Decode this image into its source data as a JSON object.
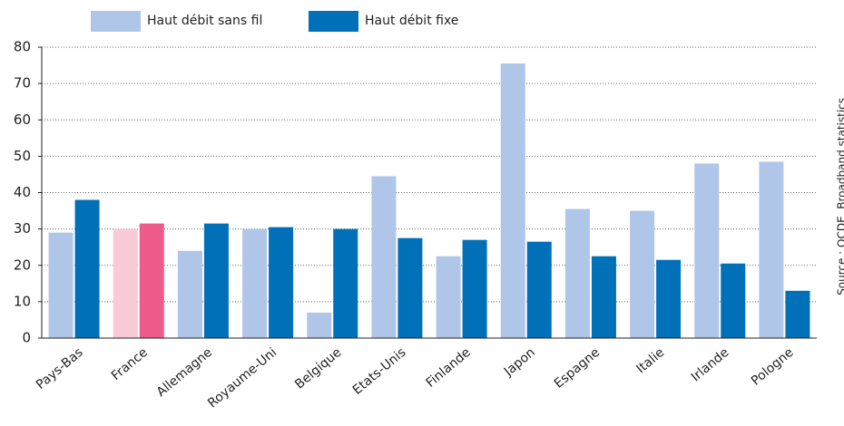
{
  "chart_data": {
    "type": "bar",
    "categories": [
      "Pays-Bas",
      "France",
      "Allemagne",
      "Royaume-Uni",
      "Belgique",
      "Etats-Unis",
      "Finlande",
      "Japon",
      "Espagne",
      "Italie",
      "Irlande",
      "Pologne"
    ],
    "series": [
      {
        "name": "Haut débit sans fil",
        "color": "#b0c6e8",
        "colors": [
          "#b0c6e8",
          "#f9cbd7",
          "#b0c6e8",
          "#b0c6e8",
          "#b0c6e8",
          "#b0c6e8",
          "#b0c6e8",
          "#b0c6e8",
          "#b0c6e8",
          "#b0c6e8",
          "#b0c6e8",
          "#b0c6e8"
        ],
        "values": [
          29,
          30,
          24,
          30,
          7,
          44.5,
          22.5,
          75.5,
          35.5,
          35,
          48,
          48.5
        ]
      },
      {
        "name": "Haut débit fixe",
        "color": "#0070b8",
        "colors": [
          "#0070b8",
          "#ef5b8a",
          "#0070b8",
          "#0070b8",
          "#0070b8",
          "#0070b8",
          "#0070b8",
          "#0070b8",
          "#0070b8",
          "#0070b8",
          "#0070b8",
          "#0070b8"
        ],
        "values": [
          38,
          31.5,
          31.5,
          30.5,
          30,
          27.5,
          27,
          26.5,
          22.5,
          21.5,
          20.5,
          13
        ]
      }
    ],
    "ylim": [
      0,
      80
    ],
    "yticks": [
      0,
      10,
      20,
      30,
      40,
      50,
      60,
      70,
      80
    ],
    "grid": true,
    "source": "Source : OCDE, Broadband statistics."
  }
}
